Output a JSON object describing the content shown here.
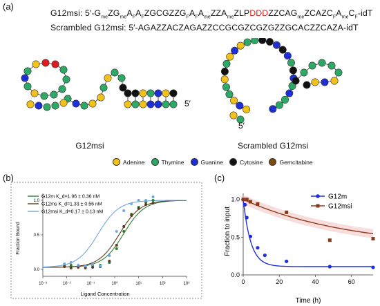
{
  "panels": {
    "a": {
      "label": "(a)",
      "g12msi_prefix": "G12msi: 5′-",
      "g12msi_tokens": [
        {
          "t": "G"
        },
        {
          "t": "me",
          "sub": true
        },
        {
          "t": "ZG"
        },
        {
          "t": "me",
          "sub": true
        },
        {
          "t": "A"
        },
        {
          "t": "F",
          "sub": true
        },
        {
          "t": "A"
        },
        {
          "t": "F",
          "sub": true
        },
        {
          "t": "ZGCGZZG"
        },
        {
          "t": "F",
          "sub": true
        },
        {
          "t": "A"
        },
        {
          "t": "F",
          "sub": true
        },
        {
          "t": "A"
        },
        {
          "t": "me",
          "sub": true
        },
        {
          "t": "ZZA"
        },
        {
          "t": "me",
          "sub": true
        },
        {
          "t": "ZLP"
        },
        {
          "t": "DDD",
          "red": true
        },
        {
          "t": "ZZCAG"
        },
        {
          "t": "me",
          "sub": true
        },
        {
          "t": "ZCAZC"
        },
        {
          "t": "F",
          "sub": true
        },
        {
          "t": "A"
        },
        {
          "t": "me",
          "sub": true
        },
        {
          "t": "C"
        },
        {
          "t": "F",
          "sub": true
        },
        {
          "t": "-idT"
        }
      ],
      "scrambled_sequence": "Scrambled G12msi: 5′-AGAZZACZAGAZZCCGCGZCGZGZZGCACZZCAZA-idT",
      "structure_left_caption": "G12msi",
      "structure_right_caption": "Scrambled G12msi",
      "five_prime_label": "5′",
      "legend": [
        {
          "name": "Adenine",
          "color": "#f2c21b"
        },
        {
          "name": "Thymine",
          "color": "#2ea866"
        },
        {
          "name": "Guanine",
          "color": "#1e2fd6"
        },
        {
          "name": "Cytosine",
          "color": "#111111"
        },
        {
          "name": "Gemcitabine",
          "color": "#7a4a10"
        }
      ],
      "nucleotide_colors": {
        "A": "#f2c21b",
        "T": "#2ea866",
        "G": "#1e2fd6",
        "C": "#111111",
        "R": "#e01b1b"
      }
    },
    "b": {
      "label": "(b)"
    },
    "c": {
      "label": "(c)"
    }
  },
  "chart_data": [
    {
      "type": "scatter",
      "xlabel": "Ligand Concentration",
      "ylabel": "Fraction Bound",
      "xscale": "log",
      "xlim": [
        0.001,
        1000
      ],
      "ylim": [
        -0.1,
        1.1
      ],
      "x_ticks": [
        "10⁻³",
        "10⁻²",
        "10⁻¹",
        "10⁰",
        "10¹",
        "10²",
        "10³"
      ],
      "y_ticks": [
        "0.0",
        "0.5",
        "1.0"
      ],
      "legend_position": "top-left",
      "series": [
        {
          "name": "G12m",
          "kd_label": "K_d=1.96 ± 0.36 nM",
          "kd": 1.96,
          "color": "#2e7d32",
          "x": [
            0.008,
            0.015,
            0.03,
            0.06,
            0.12,
            0.25,
            0.6,
            1.2,
            2.4,
            5,
            10,
            20,
            40
          ],
          "y": [
            0.05,
            0.06,
            0.05,
            0.04,
            0.06,
            0.06,
            0.1,
            0.3,
            0.55,
            0.8,
            0.9,
            0.97,
            1.0
          ]
        },
        {
          "name": "G12ms",
          "kd_label": "K_d=1.33 ± 0.56 nM",
          "kd": 1.33,
          "color": "#5a3a20",
          "x": [
            0.008,
            0.015,
            0.03,
            0.06,
            0.12,
            0.25,
            0.6,
            1.2,
            2.4,
            5,
            10,
            20,
            40
          ],
          "y": [
            0.04,
            0.02,
            0.03,
            0.02,
            0.03,
            0.04,
            0.12,
            0.35,
            0.62,
            0.78,
            0.88,
            0.94,
            0.96
          ]
        },
        {
          "name": "G12msi",
          "kd_label": "K_d=0.17 ± 0.13 nM",
          "kd": 0.17,
          "color": "#6fa8e0",
          "x": [
            0.008,
            0.015,
            0.03,
            0.06,
            0.12,
            0.25,
            0.6,
            1.2,
            2.4,
            5,
            10,
            20,
            40
          ],
          "y": [
            0.08,
            0.1,
            0.06,
            0.05,
            0.07,
            0.05,
            0.2,
            0.55,
            0.85,
            0.95,
            1.0,
            1.0,
            1.05
          ]
        }
      ]
    },
    {
      "type": "line",
      "xlabel": "Time (h)",
      "ylabel": "Fraction to input",
      "xlim": [
        0,
        72
      ],
      "ylim": [
        0,
        1.08
      ],
      "x_ticks": [
        0,
        20,
        40,
        60
      ],
      "y_ticks": [
        0.0,
        0.5,
        1.0
      ],
      "legend_position": "top-right",
      "series": [
        {
          "name": "G12m",
          "color": "#1f2ee0",
          "marker": "circle",
          "x": [
            0,
            1,
            2,
            4,
            8,
            12,
            24,
            48,
            72
          ],
          "y": [
            1.0,
            0.93,
            0.76,
            0.51,
            0.36,
            0.26,
            0.18,
            0.11,
            0.1
          ]
        },
        {
          "name": "G12msi",
          "color": "#8b3a1a",
          "marker": "square",
          "x": [
            0,
            2,
            4,
            8,
            24,
            48,
            72
          ],
          "y": [
            1.0,
            1.0,
            0.97,
            0.94,
            0.83,
            0.46,
            0.48
          ]
        }
      ]
    }
  ]
}
